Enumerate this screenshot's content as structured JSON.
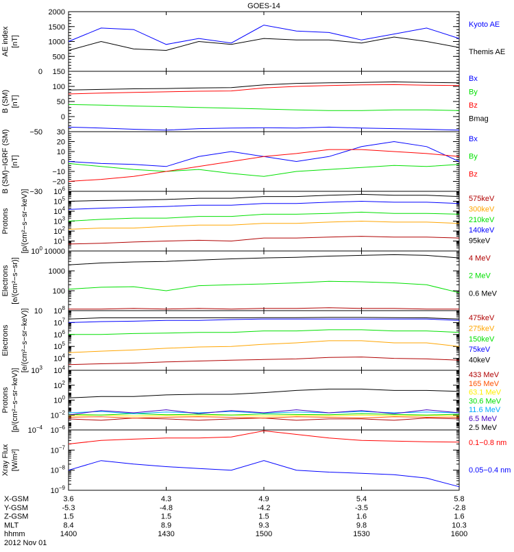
{
  "chart_data": {
    "type": "line",
    "title": "GOES-14",
    "x_unit": "minutes after 1400 UT",
    "xlim": [
      0,
      120
    ],
    "footer": {
      "rows": [
        {
          "label": "X-GSM",
          "values": [
            "3.6",
            "4.3",
            "4.9",
            "5.4",
            "5.8"
          ]
        },
        {
          "label": "Y-GSM",
          "values": [
            "-5.3",
            "-4.8",
            "-4.2",
            "-3.5",
            "-2.8"
          ]
        },
        {
          "label": "Z-GSM",
          "values": [
            "1.5",
            "1.5",
            "1.5",
            "1.6",
            "1.6"
          ]
        },
        {
          "label": "MLT",
          "values": [
            "8.4",
            "8.9",
            "9.3",
            "9.8",
            "10.3"
          ]
        },
        {
          "label": "hhmm",
          "values": [
            "1400",
            "1430",
            "1500",
            "1530",
            "1600"
          ]
        }
      ],
      "tick_minutes": [
        0,
        30,
        60,
        90,
        120
      ],
      "date": "2012 Nov 01"
    },
    "x": [
      0,
      10,
      20,
      30,
      40,
      50,
      60,
      70,
      80,
      90,
      100,
      110,
      120
    ],
    "panels": [
      {
        "ylabel": [
          "AE index",
          "[nT]"
        ],
        "scale": "linear",
        "ylim": [
          0,
          2000
        ],
        "ticks": [
          {
            "v": 0,
            "t": "0"
          },
          {
            "v": 500,
            "t": "500"
          },
          {
            "v": 1000,
            "t": "1000"
          },
          {
            "v": 1500,
            "t": "1500"
          },
          {
            "v": 2000,
            "t": "2000"
          }
        ],
        "series": [
          {
            "name": "Kyoto AE",
            "color": "#0000ff",
            "values": [
              1000,
              1450,
              1400,
              900,
              1100,
              950,
              1550,
              1350,
              1300,
              1050,
              1250,
              1450,
              1100
            ]
          },
          {
            "name": "Themis AE",
            "color": "#000000",
            "values": [
              700,
              1000,
              750,
              700,
              1000,
              900,
              1100,
              1050,
              1050,
              950,
              1150,
              1000,
              800
            ]
          }
        ]
      },
      {
        "ylabel": [
          "B (SM)",
          "[nT]"
        ],
        "scale": "linear",
        "ylim": [
          -50,
          150
        ],
        "ticks": [
          {
            "v": -50,
            "t": "−50"
          },
          {
            "v": 0,
            "t": "0"
          },
          {
            "v": 50,
            "t": "50"
          },
          {
            "v": 100,
            "t": "100"
          },
          {
            "v": 150,
            "t": "150"
          }
        ],
        "series": [
          {
            "name": "Bx",
            "color": "#0000ff",
            "values": [
              -35,
              -38,
              -42,
              -45,
              -40,
              -38,
              -37,
              -38,
              -35,
              -38,
              -40,
              -42,
              -45
            ]
          },
          {
            "name": "By",
            "color": "#00e000",
            "values": [
              40,
              38,
              35,
              33,
              30,
              28,
              25,
              22,
              20,
              20,
              22,
              22,
              20
            ]
          },
          {
            "name": "Bz",
            "color": "#ff0000",
            "values": [
              75,
              78,
              80,
              82,
              84,
              85,
              95,
              100,
              103,
              105,
              106,
              104,
              103
            ]
          },
          {
            "name": "Bmag",
            "color": "#000000",
            "values": [
              88,
              90,
              92,
              93,
              95,
              96,
              105,
              110,
              112,
              113,
              115,
              113,
              112
            ]
          }
        ]
      },
      {
        "ylabel": [
          "B (SM)−IGRF (SM)",
          "[nT]"
        ],
        "scale": "linear",
        "ylim": [
          -30,
          30
        ],
        "ticks": [
          {
            "v": -30,
            "t": "−30"
          },
          {
            "v": -20,
            "t": "−20"
          },
          {
            "v": -10,
            "t": "−10"
          },
          {
            "v": 0,
            "t": "0"
          },
          {
            "v": 10,
            "t": "10"
          },
          {
            "v": 20,
            "t": "20"
          },
          {
            "v": 30,
            "t": "30"
          }
        ],
        "series": [
          {
            "name": "Bx",
            "color": "#0000ff",
            "values": [
              0,
              -2,
              -3,
              -5,
              5,
              10,
              5,
              0,
              5,
              15,
              20,
              15,
              0
            ]
          },
          {
            "name": "By",
            "color": "#00e000",
            "values": [
              -2,
              -5,
              -8,
              -10,
              -8,
              -12,
              -15,
              -10,
              -8,
              -6,
              -4,
              -5,
              -3
            ]
          },
          {
            "name": "Bz",
            "color": "#ff0000",
            "values": [
              -20,
              -18,
              -15,
              -10,
              -5,
              0,
              5,
              8,
              12,
              12,
              10,
              8,
              5
            ]
          }
        ]
      },
      {
        "ylabel": [
          "Protons",
          "[p/(cm²−s−sr−keV)]"
        ],
        "scale": "log",
        "ylim": [
          1,
          1000000
        ],
        "ticks": [
          {
            "v": 1,
            "b": "10",
            "e": "0"
          },
          {
            "v": 10,
            "b": "10",
            "e": "1"
          },
          {
            "v": 100,
            "b": "10",
            "e": "2"
          },
          {
            "v": 1000,
            "b": "10",
            "e": "3"
          },
          {
            "v": 10000,
            "b": "10",
            "e": "4"
          },
          {
            "v": 100000,
            "b": "10",
            "e": "5"
          },
          {
            "v": 1000000,
            "b": "10",
            "e": "6"
          }
        ],
        "series": [
          {
            "name": "575keV",
            "color": "#b00000",
            "values": [
              5,
              6,
              8,
              10,
              12,
              10,
              20,
              20,
              25,
              30,
              25,
              25,
              20
            ]
          },
          {
            "name": "300keV",
            "color": "#ffa500",
            "values": [
              150,
              200,
              200,
              300,
              400,
              400,
              600,
              600,
              800,
              1000,
              800,
              800,
              600
            ]
          },
          {
            "name": "210keV",
            "color": "#00e000",
            "values": [
              1000,
              1500,
              2000,
              2000,
              3000,
              3000,
              5000,
              5000,
              6000,
              8000,
              6000,
              6000,
              5000
            ]
          },
          {
            "name": "140keV",
            "color": "#0000ff",
            "values": [
              15000,
              20000,
              25000,
              30000,
              40000,
              40000,
              60000,
              60000,
              80000,
              100000,
              80000,
              80000,
              60000
            ]
          },
          {
            "name": "95keV",
            "color": "#000000",
            "values": [
              100000,
              120000,
              130000,
              150000,
              200000,
              200000,
              300000,
              300000,
              400000,
              500000,
              400000,
              400000,
              300000
            ]
          }
        ]
      },
      {
        "ylabel": [
          "Electrons",
          "[e/(cm²−s−sr)]"
        ],
        "scale": "log",
        "ylim": [
          10,
          10000
        ],
        "ticks": [
          {
            "v": 10,
            "t": "10"
          },
          {
            "v": 100,
            "t": "100"
          },
          {
            "v": 1000,
            "t": "1000"
          },
          {
            "v": 10000,
            "t": "10000"
          }
        ],
        "series": [
          {
            "name": "4 MeV",
            "color": "#b00000",
            "values": [
              12,
              12,
              13,
              12,
              13,
              12,
              13,
              13,
              14,
              13,
              13,
              12,
              12
            ]
          },
          {
            "name": "2 MeV",
            "color": "#00e000",
            "values": [
              120,
              150,
              160,
              100,
              180,
              200,
              220,
              250,
              300,
              280,
              250,
              200,
              80
            ]
          },
          {
            "name": "0.6 MeV",
            "color": "#000000",
            "values": [
              2000,
              2500,
              2800,
              3000,
              3500,
              4000,
              4500,
              4800,
              5500,
              6000,
              6500,
              6000,
              4500
            ]
          }
        ]
      },
      {
        "ylabel": [
          "Electrons",
          "[e/(cm²−s−sr−keV)]"
        ],
        "scale": "log",
        "ylim": [
          1000,
          100000000
        ],
        "ticks": [
          {
            "v": 1000,
            "b": "10",
            "e": "3"
          },
          {
            "v": 10000,
            "b": "10",
            "e": "4"
          },
          {
            "v": 100000,
            "b": "10",
            "e": "5"
          },
          {
            "v": 1000000,
            "b": "10",
            "e": "6"
          },
          {
            "v": 10000000,
            "b": "10",
            "e": "7"
          },
          {
            "v": 100000000,
            "b": "10",
            "e": "8"
          }
        ],
        "series": [
          {
            "name": "475keV",
            "color": "#b00000",
            "values": [
              3000,
              3500,
              4000,
              5000,
              6000,
              7000,
              8000,
              9000,
              12000,
              13000,
              10000,
              9000,
              7000
            ]
          },
          {
            "name": "275keV",
            "color": "#ffa500",
            "values": [
              30000,
              40000,
              50000,
              70000,
              90000,
              100000,
              150000,
              200000,
              300000,
              300000,
              200000,
              200000,
              100000
            ]
          },
          {
            "name": "150keV",
            "color": "#00e000",
            "values": [
              1000000,
              1000000,
              1200000,
              1300000,
              1500000,
              1500000,
              2000000,
              2000000,
              2500000,
              2500000,
              2000000,
              2000000,
              1500000
            ]
          },
          {
            "name": "75keV",
            "color": "#0000ff",
            "values": [
              10000000,
              12000000,
              13000000,
              15000000,
              15000000,
              18000000,
              20000000,
              20000000,
              20000000,
              20000000,
              20000000,
              20000000,
              15000000
            ]
          },
          {
            "name": "40keV",
            "color": "#000000",
            "values": [
              20000000,
              25000000,
              25000000,
              25000000,
              25000000,
              25000000,
              26000000,
              26000000,
              27000000,
              27000000,
              26000000,
              25000000,
              20000000
            ]
          }
        ]
      },
      {
        "ylabel": [
          "Protons",
          "[p/(cm²−s−sr−keV)]"
        ],
        "scale": "log",
        "ylim": [
          0.0001,
          10000
        ],
        "ticks": [
          {
            "v": 0.0001,
            "b": "10",
            "e": "−4"
          },
          {
            "v": 0.01,
            "b": "10",
            "e": "−2"
          },
          {
            "v": 1,
            "b": "10",
            "e": "0"
          },
          {
            "v": 100,
            "b": "10",
            "e": "2"
          },
          {
            "v": 10000,
            "b": "10",
            "e": "4"
          }
        ],
        "series": [
          {
            "name": "433 MeV",
            "color": "#b00000",
            "values": [
              0.003,
              0.002,
              0.004,
              0.003,
              0.002,
              0.003,
              0.004,
              0.002,
              0.003,
              0.003,
              0.002,
              0.004,
              0.003
            ]
          },
          {
            "name": "165 MeV",
            "color": "#ff5000",
            "values": [
              0.005,
              0.006,
              0.004,
              0.005,
              0.006,
              0.005,
              0.004,
              0.006,
              0.005,
              0.004,
              0.006,
              0.005,
              0.005
            ]
          },
          {
            "name": "63.1 MeV",
            "color": "#ffee00",
            "values": [
              0.008,
              0.01,
              0.007,
              0.009,
              0.008,
              0.01,
              0.007,
              0.009,
              0.008,
              0.01,
              0.008,
              0.009,
              0.008
            ]
          },
          {
            "name": "30.6 MeV",
            "color": "#00e000",
            "values": [
              0.012,
              0.01,
              0.015,
              0.011,
              0.013,
              0.01,
              0.014,
              0.012,
              0.011,
              0.015,
              0.012,
              0.01,
              0.013
            ]
          },
          {
            "name": "11.6 MeV",
            "color": "#00aaff",
            "values": [
              0.02,
              0.03,
              0.015,
              0.025,
              0.02,
              0.03,
              0.018,
              0.025,
              0.02,
              0.03,
              0.02,
              0.025,
              0.02
            ]
          },
          {
            "name": "6.5 MeV",
            "color": "#4000c0",
            "values": [
              0.01,
              0.04,
              0.02,
              0.05,
              0.015,
              0.04,
              0.02,
              0.05,
              0.02,
              0.04,
              0.015,
              0.05,
              0.02
            ]
          },
          {
            "name": "2.5 MeV",
            "color": "#000000",
            "values": [
              2,
              3,
              3,
              5,
              6,
              6,
              10,
              20,
              30,
              30,
              20,
              20,
              15
            ]
          }
        ]
      },
      {
        "ylabel": [
          "Xray Flux",
          "[W/m²]"
        ],
        "scale": "log",
        "ylim": [
          1e-09,
          1e-06
        ],
        "ticks": [
          {
            "v": 1e-09,
            "b": "10",
            "e": "−9"
          },
          {
            "v": 1e-08,
            "b": "10",
            "e": "−8"
          },
          {
            "v": 1e-07,
            "b": "10",
            "e": "−7"
          },
          {
            "v": 1e-06,
            "b": "10",
            "e": "−6"
          }
        ],
        "series": [
          {
            "name": "0.1−0.8 nm",
            "color": "#ff0000",
            "values": [
              2e-07,
              3e-07,
              3.5e-07,
              4e-07,
              4e-07,
              4.5e-07,
              9e-07,
              6e-07,
              4e-07,
              3e-07,
              2.8e-07,
              2.6e-07,
              2.5e-07
            ]
          },
          {
            "name": "0.05−0.4 nm",
            "color": "#0000ff",
            "values": [
              1e-08,
              3e-08,
              2e-08,
              1.5e-08,
              1.2e-08,
              1e-08,
              3e-08,
              1e-08,
              8e-09,
              7e-09,
              6e-09,
              4e-09,
              1.5e-09
            ]
          }
        ]
      }
    ]
  }
}
